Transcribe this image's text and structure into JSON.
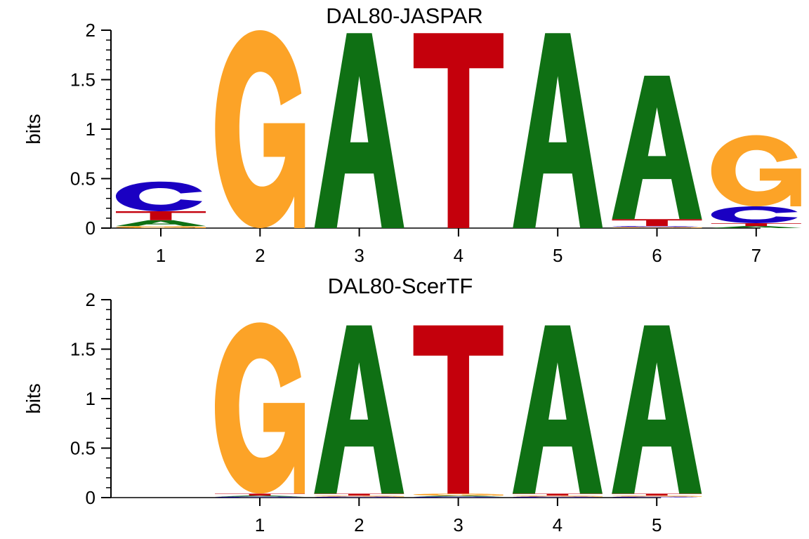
{
  "colors": {
    "A": "#0f7014",
    "C": "#1a00c2",
    "G": "#fca327",
    "T": "#c4000c",
    "axis": "#000000"
  },
  "chart_data": [
    {
      "type": "sequence-logo",
      "title": "DAL80-JASPAR",
      "ylabel": "bits",
      "ylim": [
        0,
        2
      ],
      "yticks": [
        "0",
        "0.5",
        "1",
        "1.5",
        "2"
      ],
      "positions": [
        "1",
        "2",
        "3",
        "4",
        "5",
        "6",
        "7"
      ],
      "stacks": [
        [
          {
            "letter": "G",
            "height": 0.02
          },
          {
            "letter": "A",
            "height": 0.06
          },
          {
            "letter": "T",
            "height": 0.09
          },
          {
            "letter": "C",
            "height": 0.3
          }
        ],
        [
          {
            "letter": "G",
            "height": 2.0
          }
        ],
        [
          {
            "letter": "A",
            "height": 1.97
          }
        ],
        [
          {
            "letter": "T",
            "height": 1.97
          }
        ],
        [
          {
            "letter": "A",
            "height": 1.97
          }
        ],
        [
          {
            "letter": "G",
            "height": 0.01
          },
          {
            "letter": "C",
            "height": 0.01
          },
          {
            "letter": "T",
            "height": 0.07
          },
          {
            "letter": "A",
            "height": 1.45
          }
        ],
        [
          {
            "letter": "A",
            "height": 0.02
          },
          {
            "letter": "T",
            "height": 0.03
          },
          {
            "letter": "C",
            "height": 0.17
          },
          {
            "letter": "G",
            "height": 0.72
          }
        ]
      ]
    },
    {
      "type": "sequence-logo",
      "title": "DAL80-ScerTF",
      "ylabel": "bits",
      "ylim": [
        0,
        2
      ],
      "yticks": [
        "0",
        "0.5",
        "1",
        "1.5",
        "2"
      ],
      "positions": [
        "1",
        "2",
        "3",
        "4",
        "5"
      ],
      "stacks": [
        [
          {
            "letter": "C",
            "height": 0.01
          },
          {
            "letter": "A",
            "height": 0.01
          },
          {
            "letter": "T",
            "height": 0.02
          },
          {
            "letter": "G",
            "height": 1.73
          }
        ],
        [
          {
            "letter": "C",
            "height": 0.01
          },
          {
            "letter": "G",
            "height": 0.01
          },
          {
            "letter": "T",
            "height": 0.02
          },
          {
            "letter": "A",
            "height": 1.7
          }
        ],
        [
          {
            "letter": "C",
            "height": 0.01
          },
          {
            "letter": "A",
            "height": 0.01
          },
          {
            "letter": "G",
            "height": 0.02
          },
          {
            "letter": "T",
            "height": 1.7
          }
        ],
        [
          {
            "letter": "C",
            "height": 0.01
          },
          {
            "letter": "G",
            "height": 0.01
          },
          {
            "letter": "T",
            "height": 0.02
          },
          {
            "letter": "A",
            "height": 1.7
          }
        ],
        [
          {
            "letter": "C",
            "height": 0.01
          },
          {
            "letter": "G",
            "height": 0.01
          },
          {
            "letter": "T",
            "height": 0.02
          },
          {
            "letter": "A",
            "height": 1.7
          }
        ]
      ]
    }
  ]
}
